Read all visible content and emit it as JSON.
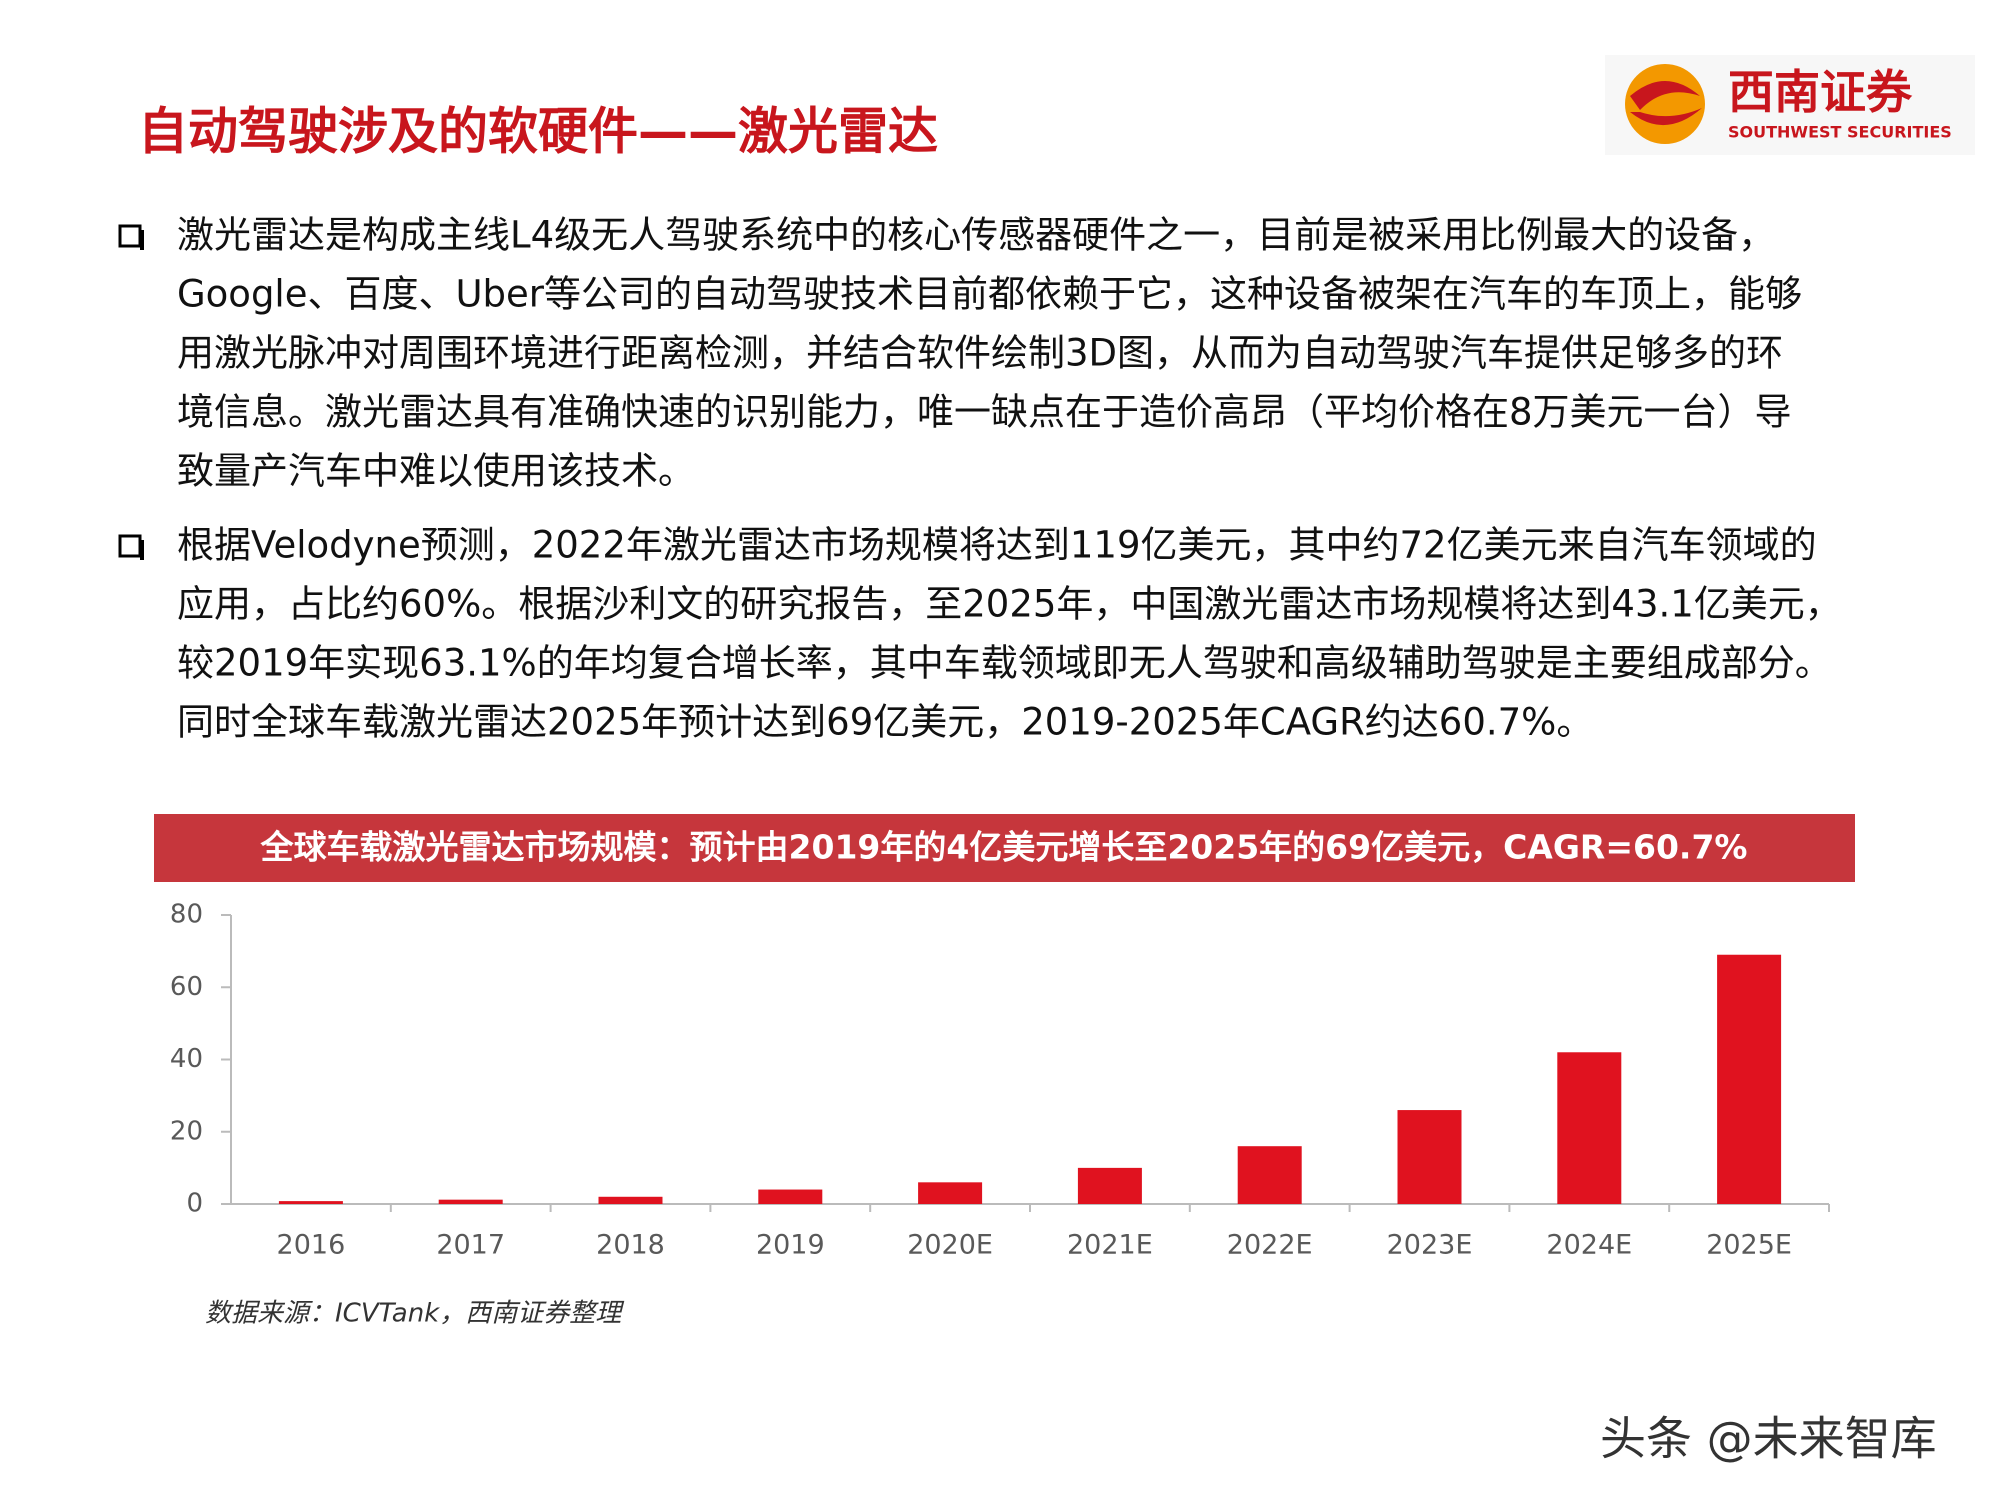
{
  "header": {
    "title": "自动驾驶涉及的软硬件——激光雷达",
    "logo_name": "西南证券",
    "logo_english": "SOUTHWEST SECURITIES"
  },
  "bullets": [
    {
      "lines": [
        "激光雷达是构成主线L4级无人驾驶系统中的核心传感器硬件之一，目前是被采用比例最大的设备，",
        "Google、百度、Uber等公司的自动驾驶技术目前都依赖于它，这种设备被架在汽车的车顶上，能够",
        "用激光脉冲对周围环境进行距离检测，并结合软件绘制3D图，从而为自动驾驶汽车提供足够多的环",
        "境信息。激光雷达具有准确快速的识别能力，唯一缺点在于造价高昂（平均价格在8万美元一台）导",
        "致量产汽车中难以使用该技术。"
      ]
    },
    {
      "lines": [
        "根据Velodyne预测，2022年激光雷达市场规模将达到119亿美元，其中约72亿美元来自汽车领域的",
        "应用，占比约60%。根据沙利文的研究报告，至2025年，中国激光雷达市场规模将达到43.1亿美元，",
        "较2019年实现63.1%的年均复合增长率，其中车载领域即无人驾驶和高级辅助驾驶是主要组成部分。",
        "同时全球车载激光雷达2025年预计达到69亿美元，2019-2025年CAGR约达60.7%。"
      ]
    }
  ],
  "chart_data": {
    "type": "bar",
    "title": "全球车载激光雷达市场规模：预计由2019年的4亿美元增长至2025年的69亿美元，CAGR=60.7%",
    "categories": [
      "2016",
      "2017",
      "2018",
      "2019",
      "2020E",
      "2021E",
      "2022E",
      "2023E",
      "2024E",
      "2025E"
    ],
    "values": [
      0.8,
      1.2,
      2,
      4,
      6,
      10,
      16,
      26,
      42,
      69
    ],
    "color": "#e0121f",
    "ylim": [
      0,
      80
    ],
    "yticks": [
      0,
      20,
      40,
      60,
      80
    ]
  },
  "source": "数据来源：ICVTank，西南证券整理",
  "footer": "头条 @未来智库"
}
